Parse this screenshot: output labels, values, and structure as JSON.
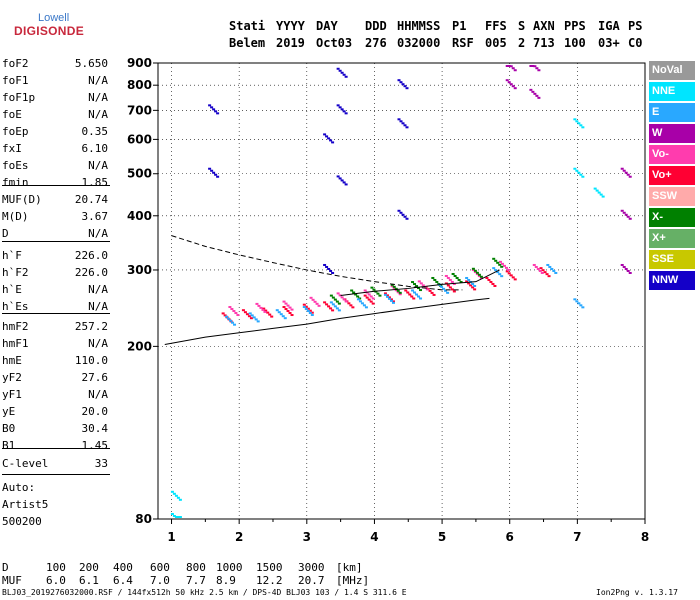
{
  "logo": {
    "line1": "Lowell",
    "line2": "DIGISONDE"
  },
  "header": {
    "labels": [
      "Stati",
      "YYYY",
      "DAY",
      "DDD",
      "HHMMSS",
      "P1",
      "FFS",
      "S",
      "AXN",
      "PPS",
      "IGA",
      "PS"
    ],
    "values": [
      "Belem",
      "2019",
      "Oct03",
      "276",
      "032000",
      "RSF",
      "005",
      "2",
      "713",
      "100",
      "03+",
      "C0"
    ]
  },
  "params": {
    "group1": [
      {
        "name": "foF2",
        "value": "5.650"
      },
      {
        "name": "foF1",
        "value": "N/A"
      },
      {
        "name": "foF1p",
        "value": "N/A"
      },
      {
        "name": "foE",
        "value": "N/A"
      },
      {
        "name": "foEp",
        "value": "0.35"
      },
      {
        "name": "fxI",
        "value": "6.10"
      },
      {
        "name": "foEs",
        "value": "N/A"
      },
      {
        "name": "fmin",
        "value": "1.85"
      }
    ],
    "group2": [
      {
        "name": "MUF(D)",
        "value": "20.74"
      },
      {
        "name": "M(D)",
        "value": "3.67"
      },
      {
        "name": "D",
        "value": "N/A"
      }
    ],
    "group3": [
      {
        "name": "h`F",
        "value": "226.0"
      },
      {
        "name": "h`F2",
        "value": "226.0"
      },
      {
        "name": "h`E",
        "value": "N/A"
      },
      {
        "name": "h`Es",
        "value": "N/A"
      }
    ],
    "group4": [
      {
        "name": "hmF2",
        "value": "257.2"
      },
      {
        "name": "hmF1",
        "value": "N/A"
      },
      {
        "name": "hmE",
        "value": "110.0"
      },
      {
        "name": "yF2",
        "value": "27.6"
      },
      {
        "name": "yF1",
        "value": "N/A"
      },
      {
        "name": "yE",
        "value": "20.0"
      },
      {
        "name": "B0",
        "value": "30.4"
      },
      {
        "name": "B1",
        "value": "1.45"
      }
    ],
    "clevel": {
      "name": "C-level",
      "value": "33"
    }
  },
  "auto": {
    "line1": "Auto:",
    "line2": "Artist5",
    "line3": "500200"
  },
  "legend": [
    {
      "label": "NoVal",
      "color": "#999999"
    },
    {
      "label": "NNE",
      "color": "#00e5ff"
    },
    {
      "label": "E",
      "color": "#29a8ff"
    },
    {
      "label": "W",
      "color": "#a800a8"
    },
    {
      "label": "Vo-",
      "color": "#ff3cae"
    },
    {
      "label": "Vo+",
      "color": "#ff0033"
    },
    {
      "label": "SSW",
      "color": "#ffaaaa"
    },
    {
      "label": "X-",
      "color": "#008000"
    },
    {
      "label": "X+",
      "color": "#66b066"
    },
    {
      "label": "SSE",
      "color": "#c8c800"
    },
    {
      "label": "NNW",
      "color": "#1400c8"
    }
  ],
  "mufTable": {
    "dLabel": "D",
    "dValues": [
      "100",
      "200",
      "400",
      "600",
      "800",
      "1000",
      "1500",
      "3000"
    ],
    "dUnit": "[km]",
    "mufLabel": "MUF",
    "mufValues": [
      "6.0",
      "6.1",
      "6.4",
      "7.0",
      "7.7",
      "8.9",
      "12.2",
      "20.7"
    ],
    "mufUnit": "[MHz]"
  },
  "footer": {
    "left": "BLJ03_2019276032000.RSF / 144fx512h 50 kHz 2.5 km / DPS-4D BLJ03 103 / 1.4 S 311.6 E",
    "right": "Ion2Png v. 1.3.17"
  },
  "chart_data": {
    "type": "scatter",
    "title": "",
    "xlabel": "",
    "ylabel": "",
    "xlim": [
      0.8,
      8.0
    ],
    "ylim": [
      80,
      900
    ],
    "yscale": "log",
    "xticks": [
      1,
      2,
      3,
      4,
      5,
      6,
      7,
      8
    ],
    "yticks": [
      80,
      200,
      300,
      400,
      500,
      600,
      700,
      800,
      900
    ],
    "grid": true,
    "legend_position": "right",
    "traces": [
      {
        "color": "#ff0033",
        "x": [
          1.8,
          2.1,
          2.4,
          2.7,
          3.0,
          3.3,
          3.6,
          3.9,
          4.2,
          4.5,
          4.8,
          5.1,
          5.4,
          5.7,
          6.0,
          6.5
        ],
        "y": [
          232,
          236,
          238,
          240,
          243,
          246,
          250,
          255,
          258,
          262,
          267,
          272,
          275,
          280,
          290,
          295
        ]
      },
      {
        "color": "#ff3cae",
        "x": [
          1.9,
          2.3,
          2.7,
          3.1,
          3.5,
          3.9,
          4.3,
          4.7,
          5.1,
          5.5,
          5.9,
          6.4
        ],
        "y": [
          240,
          244,
          247,
          252,
          258,
          262,
          268,
          275,
          283,
          292,
          305,
          300
        ]
      },
      {
        "color": "#008000",
        "x": [
          3.4,
          3.7,
          4.0,
          4.3,
          4.6,
          4.9,
          5.2,
          5.5,
          5.8
        ],
        "y": [
          255,
          262,
          266,
          270,
          274,
          280,
          286,
          294,
          310
        ]
      },
      {
        "color": "#29a8ff",
        "x": [
          1.85,
          2.2,
          2.6,
          3.0,
          3.4,
          3.8,
          4.2,
          4.6,
          5.0,
          5.4,
          5.8,
          6.6,
          7.0
        ],
        "y": [
          228,
          232,
          236,
          240,
          246,
          250,
          256,
          262,
          270,
          280,
          295,
          300,
          250
        ]
      },
      {
        "color": "#1400c8",
        "x": [
          3.3,
          3.3,
          3.5,
          3.5,
          3.5,
          4.4,
          4.4,
          4.4,
          1.6,
          1.6
        ],
        "y": [
          600,
          300,
          850,
          700,
          480,
          800,
          650,
          400,
          700,
          500
        ]
      },
      {
        "color": "#a800a8",
        "x": [
          6.0,
          6.0,
          6.35,
          6.35,
          7.7,
          7.7,
          7.7
        ],
        "y": [
          880,
          800,
          880,
          760,
          500,
          400,
          300
        ]
      },
      {
        "color": "#00e5ff",
        "x": [
          7.0,
          7.0,
          7.3,
          1.05,
          1.05
        ],
        "y": [
          650,
          500,
          450,
          80,
          90
        ]
      }
    ],
    "lines": [
      {
        "style": "dashed",
        "x": [
          1.0,
          1.5,
          2.0,
          2.5,
          3.0,
          3.5,
          4.0,
          4.5,
          5.0,
          5.3
        ],
        "y": [
          360,
          340,
          325,
          312,
          300,
          290,
          282,
          275,
          270,
          270
        ]
      },
      {
        "style": "solid",
        "x": [
          0.9,
          1.5,
          2.0,
          2.5,
          3.0,
          3.5,
          4.0,
          4.5,
          5.0,
          5.5,
          5.7
        ],
        "y": [
          202,
          210,
          215,
          220,
          225,
          232,
          238,
          244,
          250,
          256,
          258
        ]
      },
      {
        "style": "solid",
        "x": [
          3.5,
          4.0,
          4.5,
          5.0,
          5.5,
          5.85
        ],
        "y": [
          262,
          268,
          272,
          278,
          282,
          300
        ]
      }
    ]
  }
}
